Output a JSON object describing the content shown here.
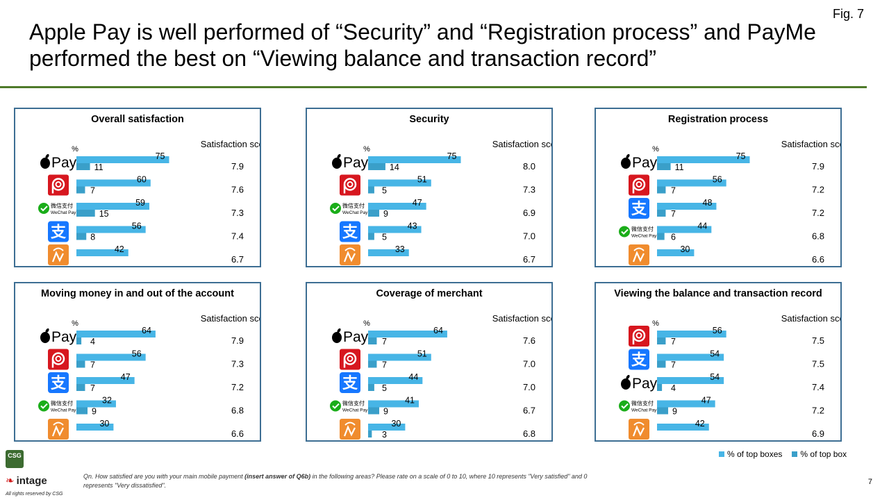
{
  "fig_label": "Fig. 7",
  "title": "Apple Pay is well performed of “Security” and “Registration process” and PayMe performed the best on “Viewing balance and transaction record”",
  "colors": {
    "top_boxes": "#47b5e6",
    "top_box": "#3a9fc9",
    "panel_border": "#3d6e93",
    "rule": "#4e7a2a"
  },
  "brand_names": {
    "applepay": "Pay",
    "wechat_cn": "微信支付",
    "wechat_en": "WeChat Pay",
    "alipay": "支"
  },
  "legend": {
    "top_boxes": "% of top boxes",
    "top_box": "% of top box"
  },
  "footnote": {
    "prefix": "Qn. How satisfied are you with your main mobile payment ",
    "bold": "(insert answer of Q6b)",
    "suffix": " in the following areas? Please rate on a scale of 0 to 10, where 10 represents \"Very satisfied\" and 0 represents \"Very dissatisfied\"."
  },
  "page_number": "7",
  "logos": {
    "csg": "CSG",
    "intage": "intage",
    "rights": "All rights reserved by CSG"
  },
  "chart_data": [
    {
      "type": "bar",
      "title": "Overall satisfaction",
      "unit_label": "%",
      "score_header": "Satisfaction score",
      "categories": [
        "applepay",
        "payme",
        "wechatpay",
        "alipay",
        "octopus"
      ],
      "series": [
        {
          "name": "% of top boxes",
          "values": [
            75,
            60,
            59,
            56,
            42
          ]
        },
        {
          "name": "% of top box",
          "values": [
            11,
            7,
            15,
            8,
            null
          ]
        }
      ],
      "scores": [
        "7.9",
        "7.6",
        "7.3",
        "7.4",
        "6.7"
      ]
    },
    {
      "type": "bar",
      "title": "Security",
      "unit_label": "%",
      "score_header": "Satisfaction score",
      "categories": [
        "applepay",
        "payme",
        "wechatpay",
        "alipay",
        "octopus"
      ],
      "series": [
        {
          "name": "% of top boxes",
          "values": [
            75,
            51,
            47,
            43,
            33
          ]
        },
        {
          "name": "% of top box",
          "values": [
            14,
            5,
            9,
            5,
            null
          ]
        }
      ],
      "scores": [
        "8.0",
        "7.3",
        "6.9",
        "7.0",
        "6.7"
      ]
    },
    {
      "type": "bar",
      "title": "Registration process",
      "unit_label": "%",
      "score_header": "Satisfaction score",
      "categories": [
        "applepay",
        "payme",
        "alipay",
        "wechatpay",
        "octopus"
      ],
      "series": [
        {
          "name": "% of top boxes",
          "values": [
            75,
            56,
            48,
            44,
            30
          ]
        },
        {
          "name": "% of top box",
          "values": [
            11,
            7,
            7,
            6,
            null
          ]
        }
      ],
      "scores": [
        "7.9",
        "7.2",
        "7.2",
        "6.8",
        "6.6"
      ]
    },
    {
      "type": "bar",
      "title": "Moving money in and out of the account",
      "unit_label": "%",
      "score_header": "Satisfaction score",
      "categories": [
        "applepay",
        "payme",
        "alipay",
        "wechatpay",
        "octopus"
      ],
      "series": [
        {
          "name": "% of top boxes",
          "values": [
            64,
            56,
            47,
            32,
            30
          ]
        },
        {
          "name": "% of top box",
          "values": [
            4,
            7,
            7,
            9,
            null
          ]
        }
      ],
      "scores": [
        "7.9",
        "7.3",
        "7.2",
        "6.8",
        "6.6"
      ]
    },
    {
      "type": "bar",
      "title": "Coverage of merchant",
      "unit_label": "%",
      "score_header": "Satisfaction score",
      "categories": [
        "applepay",
        "payme",
        "alipay",
        "wechatpay",
        "octopus"
      ],
      "series": [
        {
          "name": "% of top boxes",
          "values": [
            64,
            51,
            44,
            41,
            30
          ]
        },
        {
          "name": "% of top box",
          "values": [
            7,
            7,
            5,
            9,
            3
          ]
        }
      ],
      "scores": [
        "7.6",
        "7.0",
        "7.0",
        "6.7",
        "6.8"
      ]
    },
    {
      "type": "bar",
      "title": "Viewing the balance and transaction record",
      "unit_label": "%",
      "score_header": "Satisfaction score",
      "categories": [
        "payme",
        "alipay",
        "applepay",
        "wechatpay",
        "octopus"
      ],
      "series": [
        {
          "name": "% of top boxes",
          "values": [
            56,
            54,
            54,
            47,
            42
          ]
        },
        {
          "name": "% of top box",
          "values": [
            7,
            7,
            4,
            9,
            null
          ]
        }
      ],
      "scores": [
        "7.5",
        "7.5",
        "7.4",
        "7.2",
        "6.9"
      ]
    }
  ]
}
